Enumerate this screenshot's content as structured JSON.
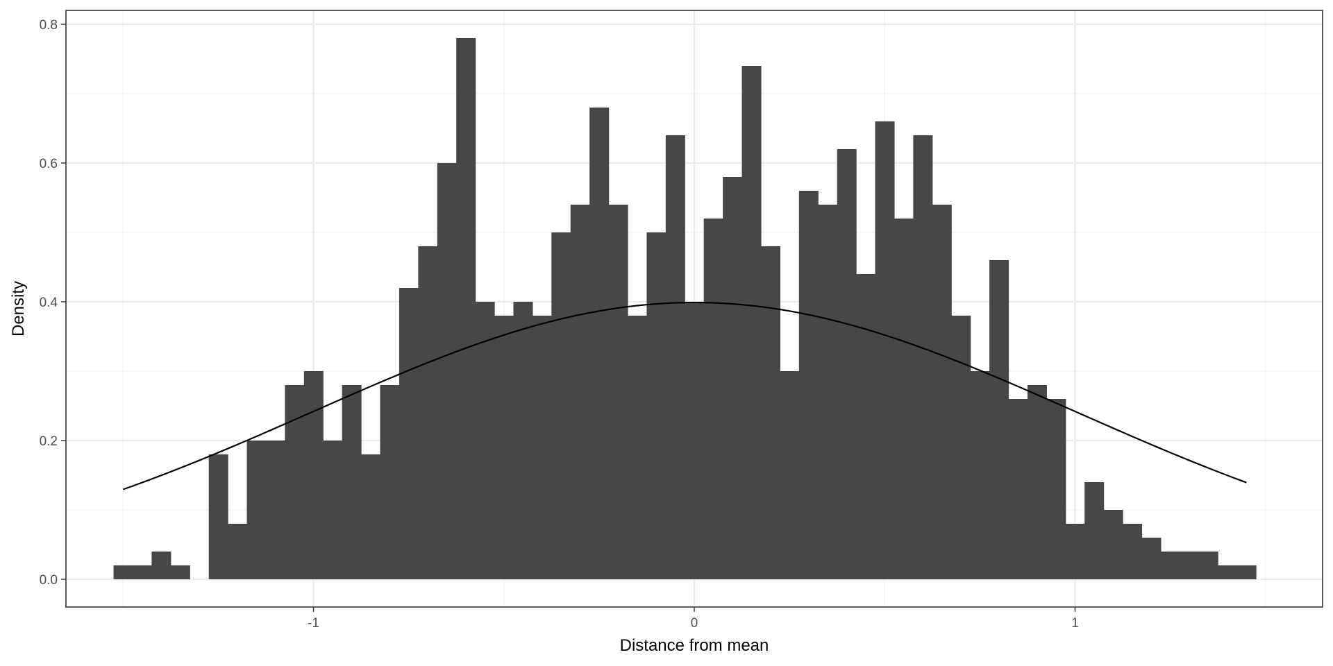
{
  "chart_data": {
    "type": "bar",
    "title": "",
    "xlabel": "Distance from mean",
    "ylabel": "Density",
    "xlim": [
      -1.65,
      1.65
    ],
    "ylim": [
      -0.04,
      0.82
    ],
    "x_ticks": [
      -1,
      0,
      1
    ],
    "x_tick_labels": [
      "-1",
      "0",
      "1"
    ],
    "y_ticks": [
      0.0,
      0.2,
      0.4,
      0.6,
      0.8
    ],
    "y_tick_labels": [
      "0.0",
      "0.2",
      "0.4",
      "0.6",
      "0.8"
    ],
    "grid": true,
    "legend": "none",
    "bin_width": 0.05,
    "bins_start": -1.525,
    "values": [
      0.02,
      0.02,
      0.04,
      0.02,
      0.0,
      0.18,
      0.08,
      0.2,
      0.2,
      0.28,
      0.3,
      0.2,
      0.28,
      0.18,
      0.28,
      0.42,
      0.48,
      0.6,
      0.78,
      0.4,
      0.38,
      0.4,
      0.38,
      0.5,
      0.54,
      0.68,
      0.54,
      0.38,
      0.5,
      0.64,
      0.4,
      0.52,
      0.58,
      0.74,
      0.48,
      0.3,
      0.56,
      0.54,
      0.62,
      0.44,
      0.66,
      0.52,
      0.64,
      0.54,
      0.38,
      0.3,
      0.46,
      0.26,
      0.28,
      0.26,
      0.08,
      0.14,
      0.1,
      0.08,
      0.06,
      0.04,
      0.04,
      0.04,
      0.02,
      0.02
    ],
    "curve": {
      "type": "normal-density",
      "mean": 0,
      "sd": 1,
      "x_range": [
        -1.5,
        1.45
      ]
    },
    "colors": {
      "bar": "#474747",
      "curve": "#000000",
      "grid_major": "#ebebeb",
      "grid_minor": "#f2f2f2",
      "panel_border": "#333333"
    }
  }
}
